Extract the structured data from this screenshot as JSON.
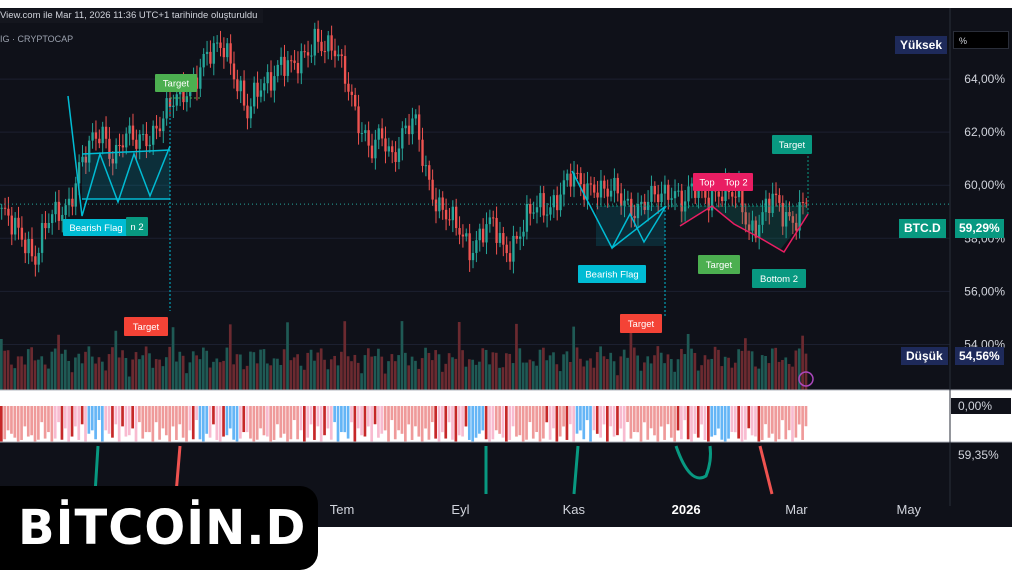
{
  "header": {
    "info_text": "View.com ile Mar 11, 2026 11:36 UTC+1 tarihinde oluşturuldu",
    "symbol_text": "IG · CRYPTOCAP"
  },
  "logo": {
    "text": "BİTCOİN.D"
  },
  "scale": {
    "high_label": "Yüksek",
    "percent_input": "%",
    "low_label": "Düşük",
    "low_value": "54,56%",
    "current_label": "BTC.D",
    "current_value": "59,29%"
  },
  "colors": {
    "background": "#0f1119",
    "up_candle": "#26a69a",
    "down_candle": "#ef5350",
    "pattern_teal": "#00bcd4",
    "target_green": "#4caf50",
    "target_red": "#f44336",
    "top_pink": "#e91e63",
    "bottom_teal": "#089981"
  },
  "chart_data": {
    "type": "candlestick",
    "y_axis": {
      "min": 53,
      "max": 66,
      "ticks": [
        {
          "value": 64,
          "label": "64,00%"
        },
        {
          "value": 62,
          "label": "62,00%"
        },
        {
          "value": 60,
          "label": "60,00%"
        },
        {
          "value": 58,
          "label": "58,00%"
        },
        {
          "value": 56,
          "label": "56,00%"
        },
        {
          "value": 54,
          "label": "54,00%"
        }
      ]
    },
    "x_axis": {
      "ticks": [
        {
          "label": "Tem",
          "pos": 0.338
        },
        {
          "label": "Eyl",
          "pos": 0.455
        },
        {
          "label": "Kas",
          "pos": 0.567
        },
        {
          "label": "2026",
          "pos": 0.678
        },
        {
          "label": "Mar",
          "pos": 0.787
        },
        {
          "label": "May",
          "pos": 0.898
        }
      ]
    },
    "close_path": [
      59.0,
      58.3,
      58.0,
      57.4,
      58.5,
      58.8,
      59.4,
      60.8,
      61.4,
      62.0,
      61.2,
      61.8,
      61.5,
      61.9,
      62.3,
      62.8,
      63.4,
      63.9,
      64.6,
      64.9,
      65.4,
      64.1,
      62.5,
      63.6,
      64.2,
      64.6,
      64.2,
      64.9,
      65.7,
      65.0,
      64.9,
      64.0,
      62.3,
      61.0,
      62.0,
      61.2,
      61.9,
      62.3,
      60.6,
      59.3,
      58.6,
      58.3,
      57.7,
      58.2,
      58.4,
      57.6,
      58.0,
      58.6,
      59.2,
      59.3,
      59.7,
      60.2,
      60.0,
      60.1,
      59.6,
      59.7,
      59.4,
      59.1,
      59.3,
      59.7,
      60.0,
      59.2,
      59.8,
      59.7,
      59.8,
      59.5,
      59.6,
      58.4,
      58.7,
      59.4,
      59.0,
      58.8,
      59.3
    ],
    "current_value": 59.29,
    "current_label": "BTC.D",
    "high_label": "Yüksek",
    "low_label": "Düşük",
    "low_value": 54.56,
    "oscillator_label": "0,00%",
    "oscillator_value_label": "59,35%",
    "annotations": [
      {
        "text": "Target",
        "kind": "target-up"
      },
      {
        "text": "Bearish Flag",
        "kind": "pattern"
      },
      {
        "text": "n 2",
        "kind": "pattern-partial"
      },
      {
        "text": "Target",
        "kind": "target-down"
      },
      {
        "text": "Bearish Flag",
        "kind": "pattern"
      },
      {
        "text": "Target",
        "kind": "target-down"
      },
      {
        "text": "Top",
        "kind": "top"
      },
      {
        "text": "Top 2",
        "kind": "top"
      },
      {
        "text": "Target",
        "kind": "target-up"
      },
      {
        "text": "Target",
        "kind": "target-green"
      },
      {
        "text": "Bottom 2",
        "kind": "bottom"
      }
    ]
  }
}
